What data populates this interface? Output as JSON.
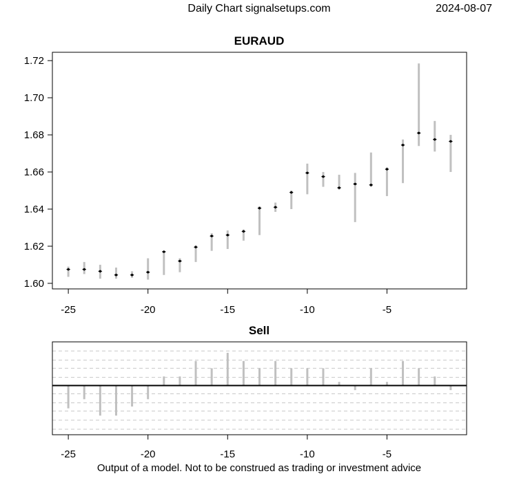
{
  "header": {
    "source": "Daily Chart signalsetups.com",
    "date": "2024-08-07"
  },
  "footer": {
    "disclaimer": "Output of a model. Not to be construed as trading or investment advice"
  },
  "chart_data": [
    {
      "type": "candlestick",
      "title": "EURAUD",
      "x": [
        -25,
        -24,
        -23,
        -22,
        -21,
        -20,
        -19,
        -18,
        -17,
        -16,
        -15,
        -14,
        -13,
        -12,
        -11,
        -10,
        -9,
        -8,
        -7,
        -6,
        -5,
        -4,
        -3,
        -2,
        -1
      ],
      "high": [
        1.609,
        1.6115,
        1.61,
        1.6085,
        1.6065,
        1.6135,
        1.6175,
        1.6135,
        1.6205,
        1.627,
        1.6285,
        1.629,
        1.6415,
        1.6435,
        1.65,
        1.6645,
        1.66,
        1.6585,
        1.6595,
        1.6705,
        1.6625,
        1.6775,
        1.7185,
        1.6875,
        1.68
      ],
      "low": [
        1.6035,
        1.605,
        1.6025,
        1.6025,
        1.603,
        1.602,
        1.6045,
        1.606,
        1.6115,
        1.6175,
        1.6185,
        1.623,
        1.626,
        1.6385,
        1.64,
        1.648,
        1.652,
        1.6505,
        1.633,
        1.652,
        1.647,
        1.654,
        1.674,
        1.671,
        1.66
      ],
      "close": [
        1.6075,
        1.6075,
        1.6065,
        1.6045,
        1.6045,
        1.606,
        1.617,
        1.612,
        1.6195,
        1.6255,
        1.626,
        1.628,
        1.6405,
        1.641,
        1.649,
        1.6595,
        1.6575,
        1.6515,
        1.6535,
        1.653,
        1.6615,
        1.6745,
        1.681,
        1.6775,
        1.6765
      ],
      "x_ticks": [
        -25,
        -20,
        -15,
        -10,
        -5
      ],
      "y_ticks": [
        1.6,
        1.62,
        1.64,
        1.66,
        1.68,
        1.7,
        1.72
      ],
      "y_tick_labels": [
        "1.60",
        "1.62",
        "1.64",
        "1.66",
        "1.68",
        "1.70",
        "1.72"
      ],
      "xlim": [
        -26,
        0
      ],
      "ylim": [
        1.597,
        1.7245
      ],
      "grid": false,
      "colors": {
        "range_bar": "#c0c0c0",
        "marker": "#000000"
      }
    },
    {
      "type": "bar",
      "title": "Sell",
      "x": [
        -25,
        -24,
        -23,
        -22,
        -21,
        -20,
        -19,
        -18,
        -17,
        -16,
        -15,
        -14,
        -13,
        -12,
        -11,
        -10,
        -9,
        -8,
        -7,
        -6,
        -5,
        -4,
        -3,
        -2,
        -1
      ],
      "values": [
        -2.5,
        -1.5,
        -3.3,
        -3.3,
        -2.3,
        -1.5,
        1.0,
        1.0,
        2.7,
        1.9,
        3.6,
        2.7,
        1.9,
        2.7,
        1.9,
        1.9,
        1.9,
        0.4,
        -0.5,
        1.9,
        0.4,
        2.7,
        1.9,
        1.0,
        -0.5
      ],
      "x_ticks": [
        -25,
        -20,
        -15,
        -10,
        -5
      ],
      "xlim": [
        -26,
        0
      ],
      "ylim": [
        -5.4,
        4.8
      ],
      "baseline": 0,
      "grid_levels": [
        -4.8,
        -3.8,
        -2.8,
        -1.9,
        -0.9,
        0.9,
        1.9,
        2.8,
        3.8
      ],
      "grid": true,
      "colors": {
        "bar": "#c0c0c0",
        "grid": "#c8c8c8",
        "baseline": "#000000"
      }
    }
  ]
}
